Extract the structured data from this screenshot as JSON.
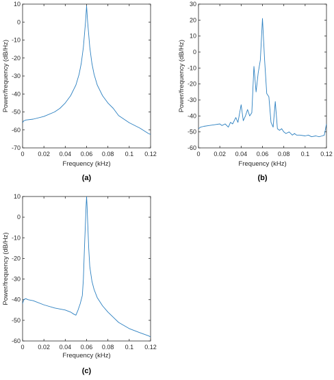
{
  "chart_data": [
    {
      "type": "line",
      "caption": "(a)",
      "xlabel": "Frequency (kHz)",
      "ylabel": "Power/frequency (dB/Hz)",
      "xlim": [
        0,
        0.12
      ],
      "ylim": [
        -70,
        10
      ],
      "xticks": [
        "0",
        "0.02",
        "0.04",
        "0.06",
        "0.08",
        "0.1",
        "0.12"
      ],
      "yticks": [
        "10",
        "0",
        "-10",
        "-20",
        "-30",
        "-40",
        "-50",
        "-60",
        "-70"
      ],
      "grid": false,
      "series": [
        {
          "color": "#2a7fc0",
          "x": [
            0,
            0.001,
            0.003,
            0.01,
            0.02,
            0.03,
            0.035,
            0.04,
            0.045,
            0.05,
            0.053,
            0.055,
            0.057,
            0.058,
            0.059,
            0.06,
            0.061,
            0.062,
            0.063,
            0.065,
            0.067,
            0.07,
            0.075,
            0.08,
            0.085,
            0.09,
            0.1,
            0.11,
            0.118,
            0.12
          ],
          "y": [
            -56,
            -55,
            -54.5,
            -54,
            -52.5,
            -50,
            -48,
            -45,
            -41,
            -35,
            -29,
            -23,
            -14,
            -7,
            0,
            9,
            0,
            -7,
            -14,
            -23,
            -29,
            -35,
            -41,
            -45,
            -48,
            -52,
            -56,
            -59,
            -62,
            -62.5
          ]
        }
      ]
    },
    {
      "type": "line",
      "caption": "(b)",
      "xlabel": "Frequency (kHz)",
      "ylabel": "Power/frequency (dB/Hz)",
      "xlim": [
        0,
        0.12
      ],
      "ylim": [
        -60,
        30
      ],
      "xticks": [
        "0",
        "0.02",
        "0.04",
        "0.06",
        "0.08",
        "0.1",
        "0.12"
      ],
      "yticks": [
        "30",
        "20",
        "10",
        "0",
        "-10",
        "-20",
        "-30",
        "-40",
        "-50",
        "-60"
      ],
      "grid": false,
      "series": [
        {
          "color": "#2a7fc0",
          "x": [
            0,
            0.002,
            0.005,
            0.01,
            0.015,
            0.02,
            0.022,
            0.025,
            0.028,
            0.03,
            0.032,
            0.035,
            0.037,
            0.04,
            0.042,
            0.044,
            0.046,
            0.048,
            0.05,
            0.052,
            0.054,
            0.056,
            0.058,
            0.06,
            0.062,
            0.064,
            0.066,
            0.068,
            0.07,
            0.072,
            0.074,
            0.076,
            0.078,
            0.08,
            0.082,
            0.085,
            0.088,
            0.09,
            0.092,
            0.095,
            0.1,
            0.103,
            0.106,
            0.11,
            0.113,
            0.116,
            0.118,
            0.12
          ],
          "y": [
            -48,
            -47,
            -46.5,
            -46,
            -45.5,
            -45,
            -46,
            -45,
            -47,
            -44,
            -45,
            -41,
            -44,
            -33,
            -43,
            -40,
            -36,
            -40,
            -38,
            -9,
            -25,
            -13,
            -5,
            21,
            -5,
            -26,
            -28,
            -44,
            -47,
            -31,
            -48,
            -49,
            -48,
            -50,
            -51,
            -50,
            -52,
            -51,
            -52,
            -52,
            -52.5,
            -52,
            -53,
            -52.5,
            -53,
            -52.5,
            -52,
            -45
          ]
        }
      ]
    },
    {
      "type": "line",
      "caption": "(c)",
      "xlabel": "Frequency (kHz)",
      "ylabel": "Power/frequency (dB/Hz)",
      "xlim": [
        0,
        0.12
      ],
      "ylim": [
        -60,
        10
      ],
      "xticks": [
        "0",
        "0.02",
        "0.04",
        "0.06",
        "0.08",
        "0.1",
        "0.12"
      ],
      "yticks": [
        "10",
        "0",
        "-10",
        "-20",
        "-30",
        "-40",
        "-50",
        "-60"
      ],
      "grid": false,
      "series": [
        {
          "color": "#2a7fc0",
          "x": [
            0,
            0.001,
            0.003,
            0.005,
            0.01,
            0.02,
            0.03,
            0.04,
            0.045,
            0.048,
            0.05,
            0.052,
            0.054,
            0.056,
            0.057,
            0.058,
            0.059,
            0.0595,
            0.06,
            0.0605,
            0.061,
            0.062,
            0.063,
            0.065,
            0.067,
            0.07,
            0.075,
            0.08,
            0.085,
            0.09,
            0.1,
            0.11,
            0.118,
            0.12
          ],
          "y": [
            -42,
            -40,
            -39.5,
            -40,
            -40.5,
            -42.5,
            -44,
            -45,
            -46,
            -47,
            -47.5,
            -45,
            -42,
            -38,
            -30,
            -15,
            -2,
            5,
            10,
            5,
            -2,
            -15,
            -24,
            -31,
            -35,
            -39,
            -43,
            -46,
            -48.5,
            -51,
            -54,
            -56,
            -57.5,
            -58
          ]
        }
      ]
    }
  ]
}
